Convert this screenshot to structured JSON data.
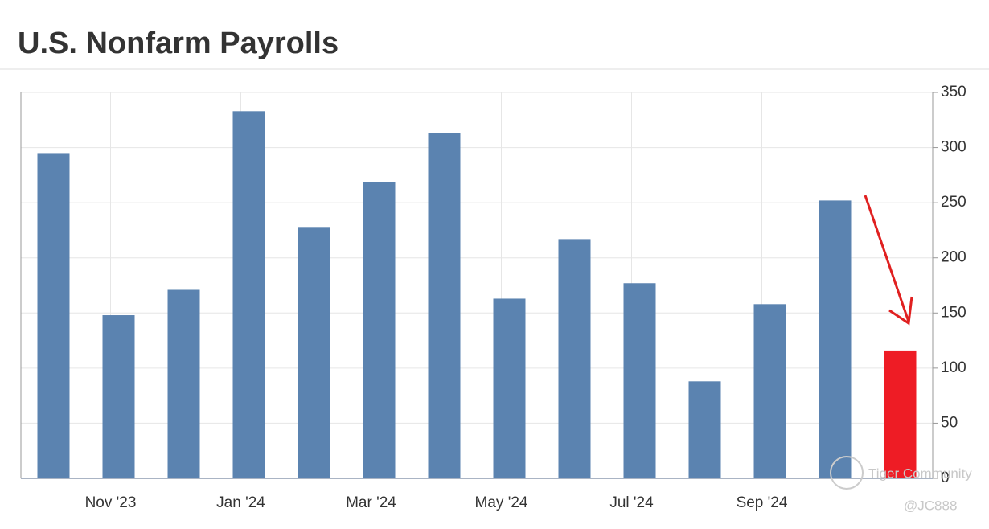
{
  "chart_data": {
    "type": "bar",
    "title": "U.S. Nonfarm Payrolls",
    "categories": [
      null,
      "Nov '23",
      null,
      "Jan '24",
      null,
      "Mar '24",
      null,
      "May '24",
      null,
      "Jul '24",
      null,
      "Sep '24",
      null,
      null
    ],
    "values": [
      295,
      148,
      171,
      333,
      228,
      269,
      313,
      163,
      217,
      177,
      88,
      158,
      252,
      116
    ],
    "colors": [
      "#5b83b0",
      "#5b83b0",
      "#5b83b0",
      "#5b83b0",
      "#5b83b0",
      "#5b83b0",
      "#5b83b0",
      "#5b83b0",
      "#5b83b0",
      "#5b83b0",
      "#5b83b0",
      "#5b83b0",
      "#5b83b0",
      "#ee1c25"
    ],
    "ylim": [
      0,
      350
    ],
    "yticks": [
      0,
      50,
      100,
      150,
      200,
      250,
      300,
      350
    ],
    "grid": true,
    "yaxis_side": "right",
    "watermarks": [
      "Tiger Community",
      "@JC888"
    ]
  }
}
